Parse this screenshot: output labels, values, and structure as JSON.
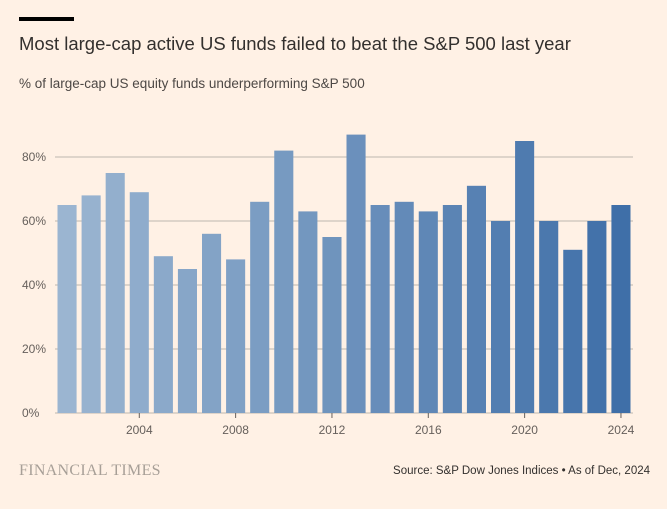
{
  "header": {
    "title": "Most large-cap active US funds failed to beat the S&P 500 last year",
    "subtitle": "% of large-cap US equity funds underperforming S&P 500"
  },
  "footer": {
    "logo": "FINANCIAL TIMES",
    "source": "Source: S&P Dow Jones Indices • As of Dec, 2024"
  },
  "colors": {
    "background": "#fff1e5",
    "bar_start": "#9bb5d1",
    "bar_end": "#3f6fa8",
    "gridline": "#bdb6ae",
    "axis_text": "#66605c"
  },
  "chart_data": {
    "type": "bar",
    "x": [
      2001,
      2002,
      2003,
      2004,
      2005,
      2006,
      2007,
      2008,
      2009,
      2010,
      2011,
      2012,
      2013,
      2014,
      2015,
      2016,
      2017,
      2018,
      2019,
      2020,
      2021,
      2022,
      2023,
      2024
    ],
    "values": [
      65,
      68,
      75,
      69,
      49,
      45,
      56,
      48,
      66,
      82,
      63,
      55,
      87,
      65,
      66,
      63,
      65,
      71,
      60,
      85,
      60,
      51,
      60,
      65
    ],
    "ylim": [
      0,
      90
    ],
    "yticks": [
      0,
      20,
      40,
      60,
      80
    ],
    "ytick_labels": [
      "0%",
      "20%",
      "40%",
      "60%",
      "80%"
    ],
    "xticks": [
      2004,
      2008,
      2012,
      2016,
      2020,
      2024
    ],
    "xtick_labels": [
      "2004",
      "2008",
      "2012",
      "2016",
      "2020",
      "2024"
    ],
    "grid": true,
    "legend": "none"
  }
}
